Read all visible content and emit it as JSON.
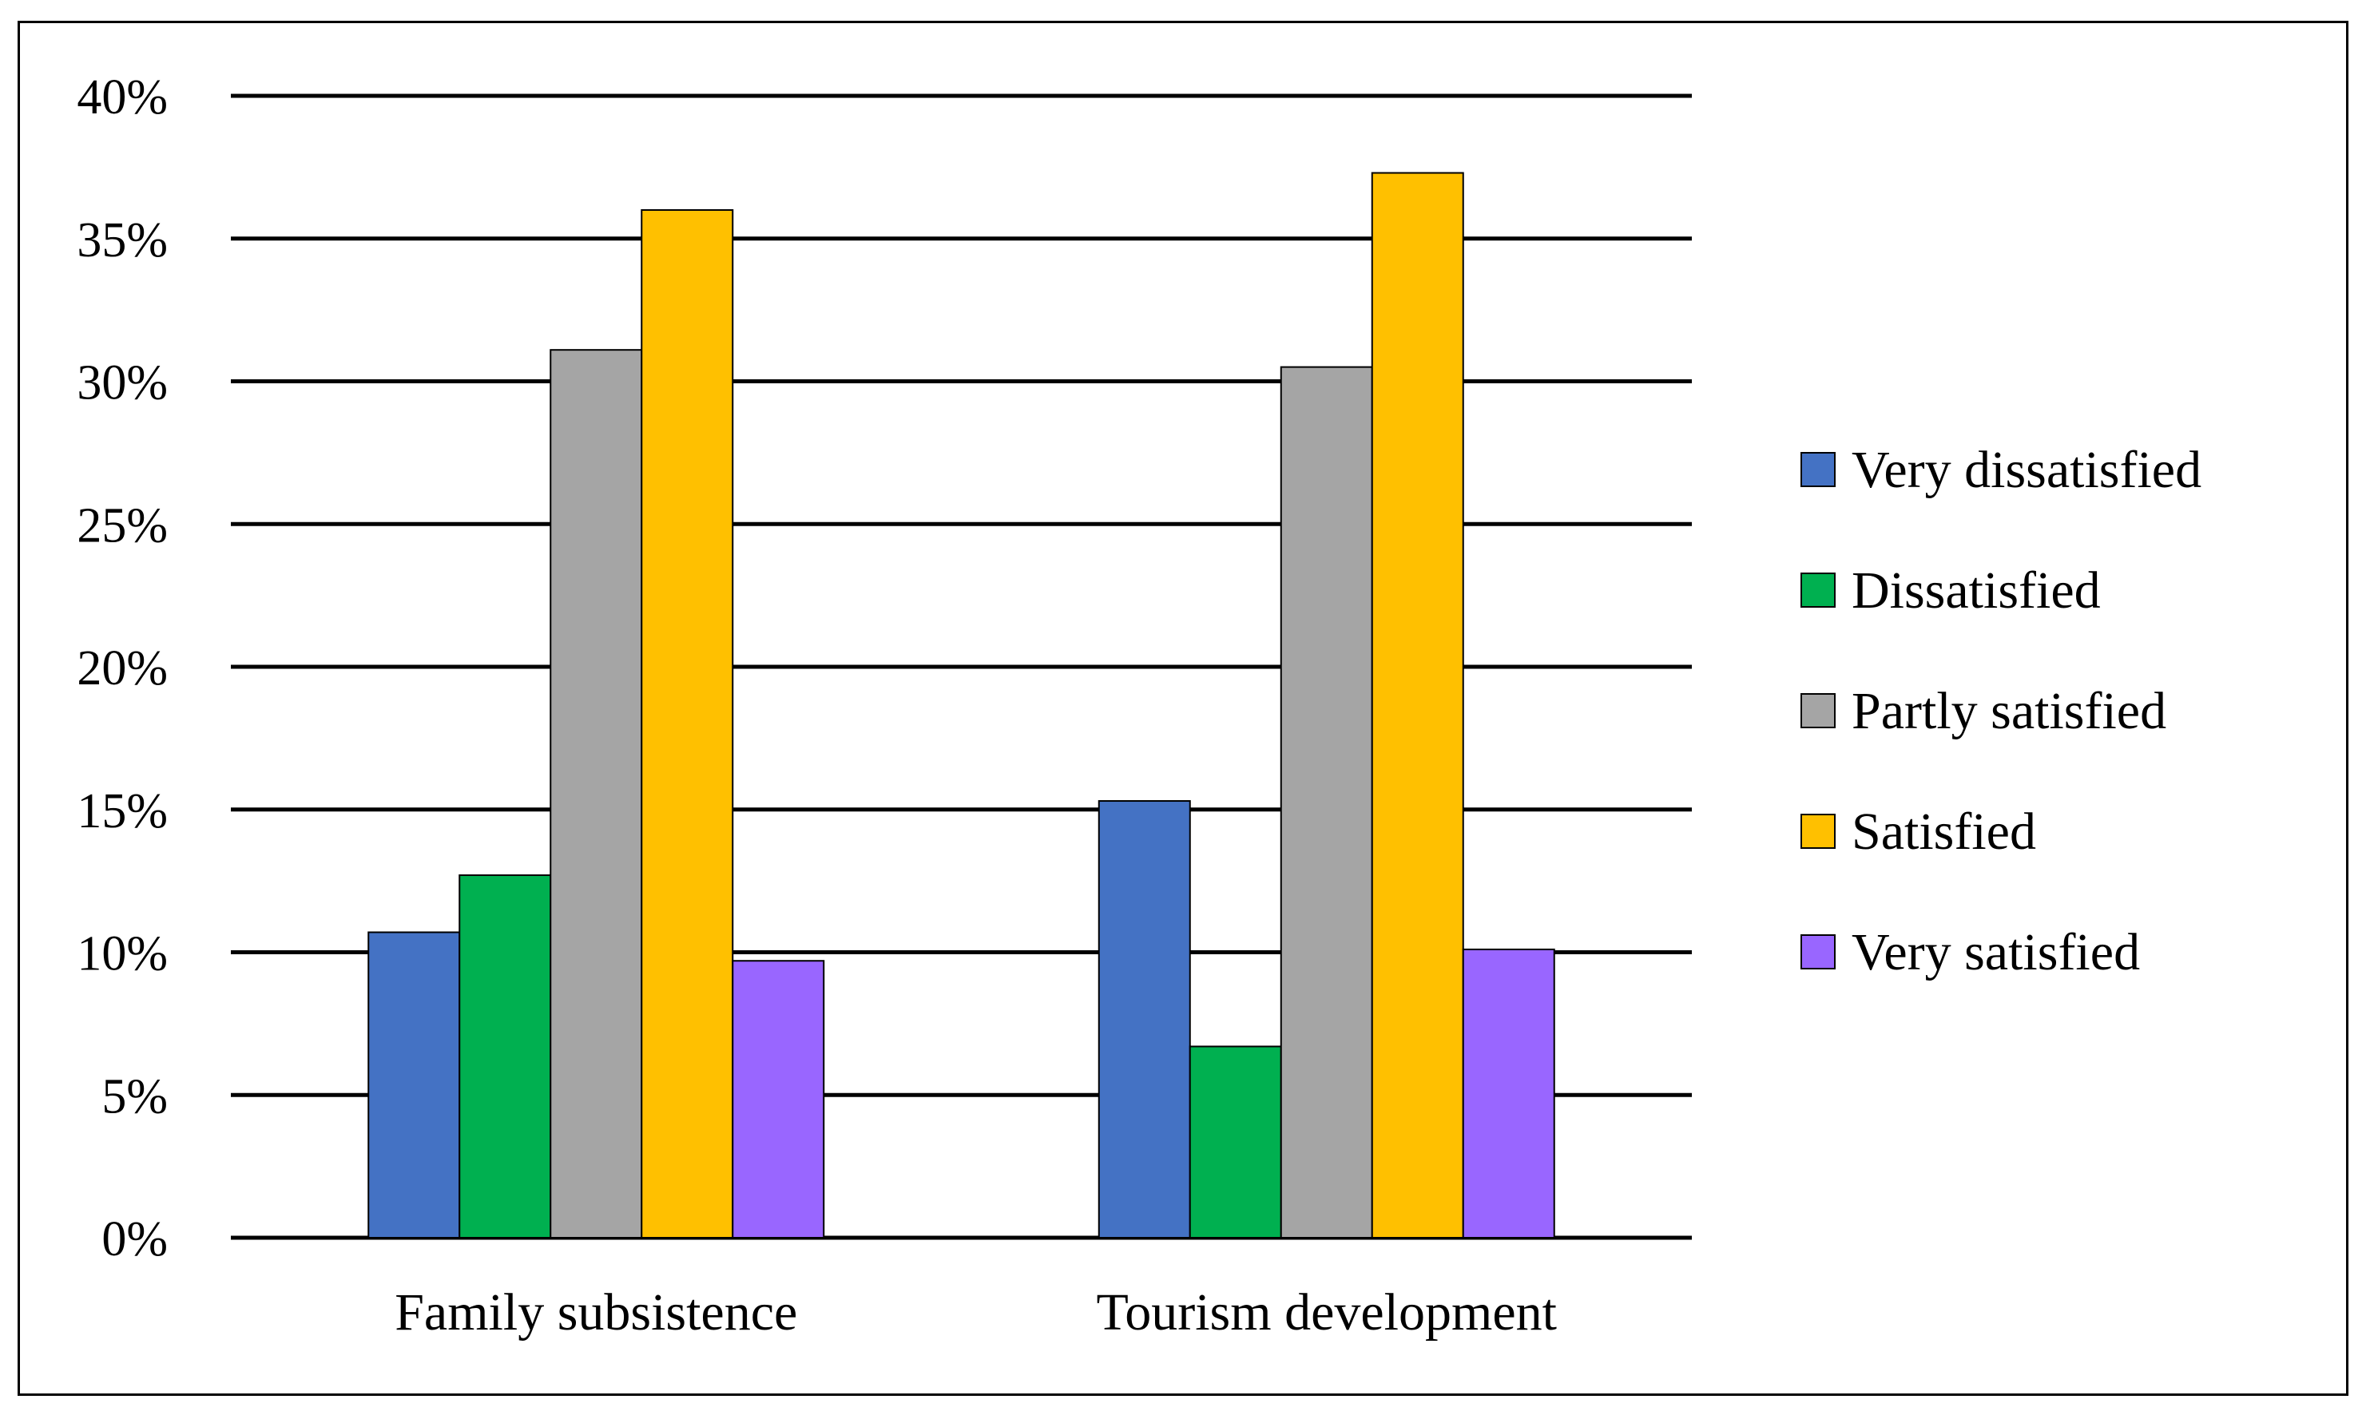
{
  "chart_data": {
    "type": "bar",
    "title": "",
    "xlabel": "",
    "ylabel": "",
    "categories": [
      "Family subsistence",
      "Tourism development"
    ],
    "series": [
      {
        "name": "Very dissatisfied",
        "color": "#4472C4",
        "values": [
          10.7,
          15.3
        ]
      },
      {
        "name": "Dissatisfied",
        "color": "#00B050",
        "values": [
          12.7,
          6.7
        ]
      },
      {
        "name": "Partly satisfied",
        "color": "#A5A5A5",
        "values": [
          31.1,
          30.5
        ]
      },
      {
        "name": "Satisfied",
        "color": "#FFC000",
        "values": [
          36.0,
          37.3
        ]
      },
      {
        "name": "Very satisfied",
        "color": "#9966FF",
        "values": [
          9.7,
          10.1
        ]
      }
    ],
    "ylim": [
      0,
      40
    ],
    "yticks": [
      0,
      5,
      10,
      15,
      20,
      25,
      30,
      35,
      40
    ],
    "ytick_suffix": "%",
    "grid": true,
    "legend_position": "right"
  }
}
